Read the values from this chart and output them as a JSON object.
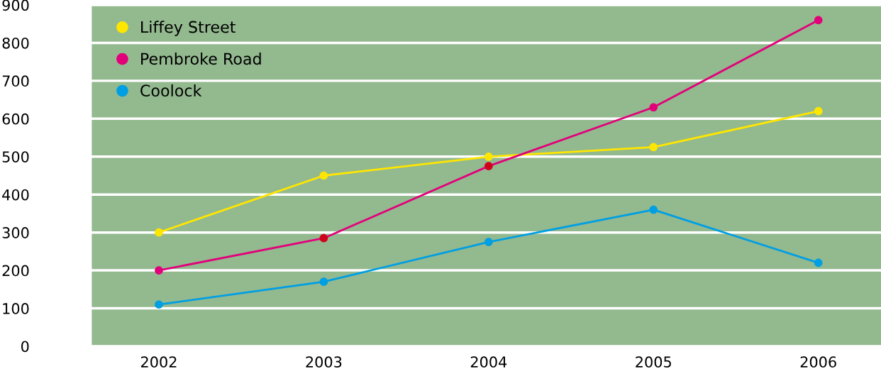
{
  "chart_data": {
    "type": "line",
    "categories": [
      "2002",
      "2003",
      "2004",
      "2005",
      "2006"
    ],
    "series": [
      {
        "name": "Liffey Street",
        "color": "#ffe600",
        "values": [
          300,
          450,
          500,
          525,
          620
        ]
      },
      {
        "name": "Pembroke Road",
        "color": "#e2007a",
        "colors": [
          "#e2007a",
          "#d0021b",
          "#d0021b",
          "#e2007a",
          "#e2007a"
        ],
        "values": [
          200,
          285,
          475,
          630,
          860
        ]
      },
      {
        "name": "Coolock",
        "color": "#009fe3",
        "values": [
          110,
          170,
          275,
          360,
          220
        ]
      }
    ],
    "ylim": [
      0,
      900
    ],
    "yticks": [
      0,
      100,
      200,
      300,
      400,
      500,
      600,
      700,
      800,
      900
    ],
    "grid": "y",
    "legend": "top left",
    "marker": "circle",
    "line_style": "solid"
  }
}
